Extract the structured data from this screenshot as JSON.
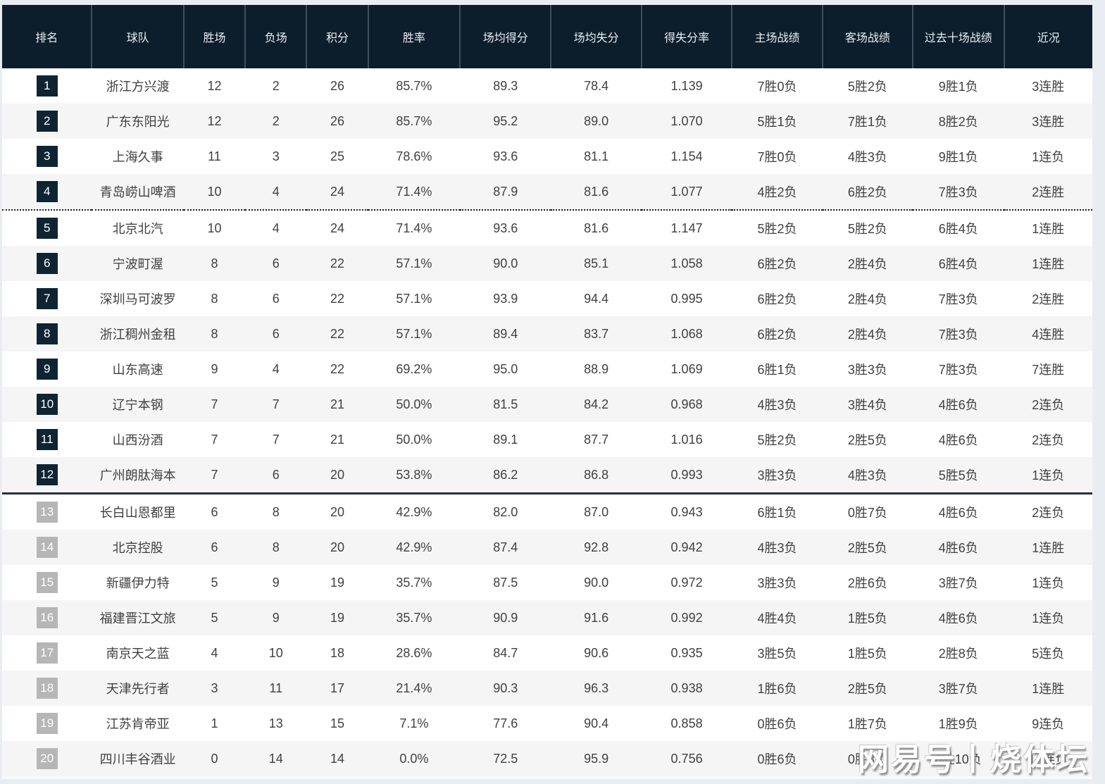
{
  "watermark": {
    "text": "网易号丨烧体坛"
  },
  "colors": {
    "header_bg": "#0c1d2b",
    "header_text": "#e8eef3",
    "header_divider": "#3e4e5c",
    "badge_dark": "#0e2433",
    "badge_gray": "#b6b6b6",
    "row_alt": "#f5f5f6",
    "page_bg": "#e9ecf0",
    "body_text": "#404040"
  },
  "table": {
    "dark_badge_max_rank": 12,
    "dividers": {
      "dotted_after_rank": 4,
      "solid_after_rank": 12
    },
    "columns": [
      {
        "key": "rank",
        "label": "排名"
      },
      {
        "key": "team",
        "label": "球队"
      },
      {
        "key": "wins",
        "label": "胜场"
      },
      {
        "key": "losses",
        "label": "负场"
      },
      {
        "key": "points",
        "label": "积分"
      },
      {
        "key": "win_rate",
        "label": "胜率"
      },
      {
        "key": "ppg",
        "label": "场均得分"
      },
      {
        "key": "papg",
        "label": "场均失分"
      },
      {
        "key": "ratio",
        "label": "得失分率"
      },
      {
        "key": "home",
        "label": "主场战绩"
      },
      {
        "key": "away",
        "label": "客场战绩"
      },
      {
        "key": "last10",
        "label": "过去十场战绩"
      },
      {
        "key": "streak",
        "label": "近况"
      }
    ],
    "rows": [
      {
        "rank": 1,
        "team": "浙江方兴渡",
        "wins": "12",
        "losses": "2",
        "points": "26",
        "win_rate": "85.7%",
        "ppg": "89.3",
        "papg": "78.4",
        "ratio": "1.139",
        "home": "7胜0负",
        "away": "5胜2负",
        "last10": "9胜1负",
        "streak": "3连胜"
      },
      {
        "rank": 2,
        "team": "广东东阳光",
        "wins": "12",
        "losses": "2",
        "points": "26",
        "win_rate": "85.7%",
        "ppg": "95.2",
        "papg": "89.0",
        "ratio": "1.070",
        "home": "5胜1负",
        "away": "7胜1负",
        "last10": "8胜2负",
        "streak": "3连胜"
      },
      {
        "rank": 3,
        "team": "上海久事",
        "wins": "11",
        "losses": "3",
        "points": "25",
        "win_rate": "78.6%",
        "ppg": "93.6",
        "papg": "81.1",
        "ratio": "1.154",
        "home": "7胜0负",
        "away": "4胜3负",
        "last10": "9胜1负",
        "streak": "1连负"
      },
      {
        "rank": 4,
        "team": "青岛崂山啤酒",
        "wins": "10",
        "losses": "4",
        "points": "24",
        "win_rate": "71.4%",
        "ppg": "87.9",
        "papg": "81.6",
        "ratio": "1.077",
        "home": "4胜2负",
        "away": "6胜2负",
        "last10": "7胜3负",
        "streak": "2连胜"
      },
      {
        "rank": 5,
        "team": "北京北汽",
        "wins": "10",
        "losses": "4",
        "points": "24",
        "win_rate": "71.4%",
        "ppg": "93.6",
        "papg": "81.6",
        "ratio": "1.147",
        "home": "5胜2负",
        "away": "5胜2负",
        "last10": "6胜4负",
        "streak": "1连胜"
      },
      {
        "rank": 6,
        "team": "宁波町渥",
        "wins": "8",
        "losses": "6",
        "points": "22",
        "win_rate": "57.1%",
        "ppg": "90.0",
        "papg": "85.1",
        "ratio": "1.058",
        "home": "6胜2负",
        "away": "2胜4负",
        "last10": "6胜4负",
        "streak": "1连胜"
      },
      {
        "rank": 7,
        "team": "深圳马可波罗",
        "wins": "8",
        "losses": "6",
        "points": "22",
        "win_rate": "57.1%",
        "ppg": "93.9",
        "papg": "94.4",
        "ratio": "0.995",
        "home": "6胜2负",
        "away": "2胜4负",
        "last10": "7胜3负",
        "streak": "2连胜"
      },
      {
        "rank": 8,
        "team": "浙江稠州金租",
        "wins": "8",
        "losses": "6",
        "points": "22",
        "win_rate": "57.1%",
        "ppg": "89.4",
        "papg": "83.7",
        "ratio": "1.068",
        "home": "6胜2负",
        "away": "2胜4负",
        "last10": "7胜3负",
        "streak": "4连胜"
      },
      {
        "rank": 9,
        "team": "山东高速",
        "wins": "9",
        "losses": "4",
        "points": "22",
        "win_rate": "69.2%",
        "ppg": "95.0",
        "papg": "88.9",
        "ratio": "1.069",
        "home": "6胜1负",
        "away": "3胜3负",
        "last10": "7胜3负",
        "streak": "7连胜"
      },
      {
        "rank": 10,
        "team": "辽宁本钢",
        "wins": "7",
        "losses": "7",
        "points": "21",
        "win_rate": "50.0%",
        "ppg": "81.5",
        "papg": "84.2",
        "ratio": "0.968",
        "home": "4胜3负",
        "away": "3胜4负",
        "last10": "4胜6负",
        "streak": "2连负"
      },
      {
        "rank": 11,
        "team": "山西汾酒",
        "wins": "7",
        "losses": "7",
        "points": "21",
        "win_rate": "50.0%",
        "ppg": "89.1",
        "papg": "87.7",
        "ratio": "1.016",
        "home": "5胜2负",
        "away": "2胜5负",
        "last10": "4胜6负",
        "streak": "2连负"
      },
      {
        "rank": 12,
        "team": "广州朗肽海本",
        "wins": "7",
        "losses": "6",
        "points": "20",
        "win_rate": "53.8%",
        "ppg": "86.2",
        "papg": "86.8",
        "ratio": "0.993",
        "home": "3胜3负",
        "away": "4胜3负",
        "last10": "5胜5负",
        "streak": "1连负"
      },
      {
        "rank": 13,
        "team": "长白山恩都里",
        "wins": "6",
        "losses": "8",
        "points": "20",
        "win_rate": "42.9%",
        "ppg": "82.0",
        "papg": "87.0",
        "ratio": "0.943",
        "home": "6胜1负",
        "away": "0胜7负",
        "last10": "4胜6负",
        "streak": "2连负"
      },
      {
        "rank": 14,
        "team": "北京控股",
        "wins": "6",
        "losses": "8",
        "points": "20",
        "win_rate": "42.9%",
        "ppg": "87.4",
        "papg": "92.8",
        "ratio": "0.942",
        "home": "4胜3负",
        "away": "2胜5负",
        "last10": "4胜6负",
        "streak": "1连胜"
      },
      {
        "rank": 15,
        "team": "新疆伊力特",
        "wins": "5",
        "losses": "9",
        "points": "19",
        "win_rate": "35.7%",
        "ppg": "87.5",
        "papg": "90.0",
        "ratio": "0.972",
        "home": "3胜3负",
        "away": "2胜6负",
        "last10": "3胜7负",
        "streak": "1连负"
      },
      {
        "rank": 16,
        "team": "福建晋江文旅",
        "wins": "5",
        "losses": "9",
        "points": "19",
        "win_rate": "35.7%",
        "ppg": "90.9",
        "papg": "91.6",
        "ratio": "0.992",
        "home": "4胜4负",
        "away": "1胜5负",
        "last10": "4胜6负",
        "streak": "1连负"
      },
      {
        "rank": 17,
        "team": "南京天之蓝",
        "wins": "4",
        "losses": "10",
        "points": "18",
        "win_rate": "28.6%",
        "ppg": "84.7",
        "papg": "90.6",
        "ratio": "0.935",
        "home": "3胜5负",
        "away": "1胜5负",
        "last10": "2胜8负",
        "streak": "5连负"
      },
      {
        "rank": 18,
        "team": "天津先行者",
        "wins": "3",
        "losses": "11",
        "points": "17",
        "win_rate": "21.4%",
        "ppg": "90.3",
        "papg": "96.3",
        "ratio": "0.938",
        "home": "1胜6负",
        "away": "2胜5负",
        "last10": "3胜7负",
        "streak": "1连胜"
      },
      {
        "rank": 19,
        "team": "江苏肯帝亚",
        "wins": "1",
        "losses": "13",
        "points": "15",
        "win_rate": "7.1%",
        "ppg": "77.6",
        "papg": "90.4",
        "ratio": "0.858",
        "home": "0胜6负",
        "away": "1胜7负",
        "last10": "1胜9负",
        "streak": "9连负"
      },
      {
        "rank": 20,
        "team": "四川丰谷酒业",
        "wins": "0",
        "losses": "14",
        "points": "14",
        "win_rate": "0.0%",
        "ppg": "72.5",
        "papg": "95.9",
        "ratio": "0.756",
        "home": "0胜6负",
        "away": "0胜8负",
        "last10": "0胜10负",
        "streak": "14连负"
      }
    ]
  }
}
